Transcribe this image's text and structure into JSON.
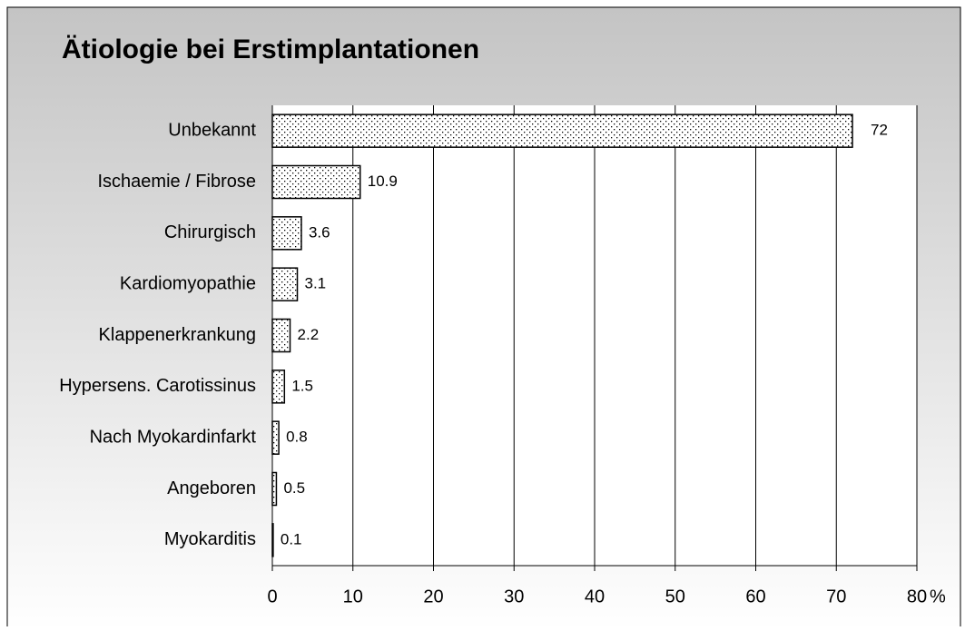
{
  "chart_data": {
    "type": "hbar",
    "title": "Ätiologie bei Erstimplantationen",
    "categories": [
      "Unbekannt",
      "Ischaemie / Fibrose",
      "Chirurgisch",
      "Kardiomyopathie",
      "Klappenerkrankung",
      "Hypersens. Carotissinus",
      "Nach Myokardinfarkt",
      "Angeboren",
      "Myokarditis"
    ],
    "values": [
      72,
      10.9,
      3.6,
      3.1,
      2.2,
      1.5,
      0.8,
      0.5,
      0.1
    ],
    "xlabel": "%",
    "xlim": [
      0,
      80
    ],
    "xticks": [
      0,
      10,
      20,
      30,
      40,
      50,
      60,
      70,
      80
    ],
    "grid": true,
    "color": "#000000"
  }
}
